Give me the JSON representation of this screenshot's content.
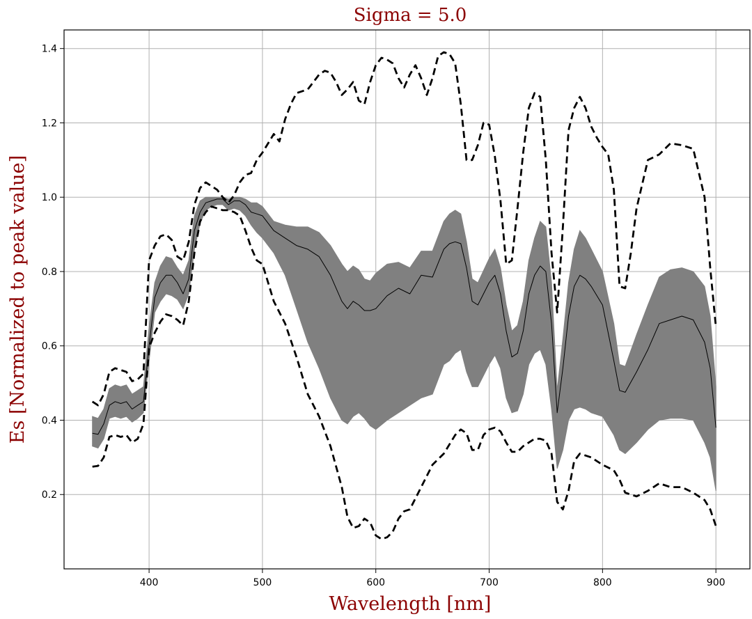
{
  "chart_data": {
    "type": "line",
    "title": "Sigma = 5.0",
    "xlabel": "Wavelength [nm]",
    "ylabel": "Es [Normalized to peak value]",
    "xlim": [
      325,
      930
    ],
    "ylim": [
      0.0,
      1.45
    ],
    "x_ticks": [
      400,
      500,
      600,
      700,
      800,
      900
    ],
    "y_ticks": [
      0.2,
      0.4,
      0.6,
      0.8,
      1.0,
      1.2,
      1.4
    ],
    "grid": true,
    "colors": {
      "band": "#808080",
      "mean": "#000000",
      "bounds": "#000000",
      "title": "#8b0000"
    },
    "series": [
      {
        "style": "solid-thin",
        "x": [
          350,
          355,
          360,
          365,
          370,
          375,
          380,
          385,
          390,
          395,
          400,
          405,
          410,
          415,
          420,
          425,
          430,
          435,
          440,
          445,
          450,
          455,
          460,
          465,
          470,
          475,
          480,
          485,
          490,
          495,
          500,
          510,
          520,
          530,
          540,
          550,
          560,
          570,
          575,
          580,
          585,
          590,
          595,
          600,
          610,
          620,
          630,
          640,
          650,
          660,
          665,
          670,
          675,
          680,
          685,
          690,
          700,
          705,
          710,
          715,
          720,
          725,
          730,
          735,
          740,
          745,
          750,
          755,
          760,
          765,
          770,
          775,
          780,
          785,
          790,
          800,
          810,
          815,
          820,
          830,
          840,
          850,
          860,
          870,
          880,
          890,
          895,
          900
        ],
        "y": [
          0.365,
          0.362,
          0.39,
          0.44,
          0.45,
          0.445,
          0.45,
          0.43,
          0.44,
          0.45,
          0.6,
          0.73,
          0.77,
          0.79,
          0.79,
          0.77,
          0.74,
          0.78,
          0.91,
          0.96,
          0.985,
          0.99,
          0.995,
          0.995,
          0.98,
          0.99,
          0.99,
          0.98,
          0.96,
          0.955,
          0.95,
          0.91,
          0.89,
          0.87,
          0.86,
          0.84,
          0.79,
          0.72,
          0.7,
          0.72,
          0.71,
          0.695,
          0.695,
          0.7,
          0.735,
          0.755,
          0.74,
          0.79,
          0.785,
          0.86,
          0.875,
          0.88,
          0.875,
          0.81,
          0.72,
          0.71,
          0.77,
          0.79,
          0.74,
          0.64,
          0.57,
          0.58,
          0.64,
          0.74,
          0.79,
          0.815,
          0.8,
          0.66,
          0.42,
          0.54,
          0.68,
          0.76,
          0.79,
          0.78,
          0.76,
          0.71,
          0.56,
          0.48,
          0.475,
          0.53,
          0.59,
          0.66,
          0.67,
          0.68,
          0.67,
          0.61,
          0.54,
          0.38
        ]
      },
      {
        "style": "dashed",
        "x": [
          350,
          355,
          360,
          365,
          370,
          375,
          380,
          385,
          390,
          395,
          400,
          405,
          410,
          415,
          420,
          425,
          430,
          435,
          440,
          445,
          450,
          455,
          460,
          465,
          470,
          475,
          480,
          485,
          490,
          495,
          500,
          510,
          515,
          520,
          525,
          530,
          540,
          545,
          550,
          555,
          560,
          565,
          570,
          575,
          580,
          585,
          590,
          595,
          600,
          605,
          610,
          615,
          620,
          625,
          630,
          635,
          640,
          645,
          650,
          655,
          660,
          665,
          670,
          675,
          680,
          685,
          690,
          695,
          700,
          705,
          710,
          715,
          720,
          725,
          730,
          735,
          740,
          745,
          750,
          755,
          760,
          765,
          770,
          775,
          780,
          785,
          790,
          795,
          800,
          805,
          810,
          815,
          820,
          825,
          830,
          840,
          850,
          860,
          870,
          880,
          890,
          895,
          900
        ],
        "y": [
          0.45,
          0.44,
          0.47,
          0.53,
          0.54,
          0.535,
          0.53,
          0.505,
          0.51,
          0.525,
          0.83,
          0.87,
          0.895,
          0.9,
          0.885,
          0.84,
          0.83,
          0.88,
          0.98,
          1.025,
          1.04,
          1.03,
          1.02,
          1.0,
          0.985,
          1.005,
          1.04,
          1.06,
          1.065,
          1.1,
          1.12,
          1.17,
          1.15,
          1.21,
          1.25,
          1.28,
          1.29,
          1.31,
          1.33,
          1.34,
          1.335,
          1.31,
          1.275,
          1.29,
          1.31,
          1.26,
          1.25,
          1.31,
          1.355,
          1.375,
          1.37,
          1.36,
          1.32,
          1.295,
          1.33,
          1.355,
          1.32,
          1.275,
          1.32,
          1.38,
          1.39,
          1.385,
          1.36,
          1.25,
          1.1,
          1.1,
          1.14,
          1.2,
          1.195,
          1.11,
          0.99,
          0.82,
          0.83,
          0.97,
          1.12,
          1.24,
          1.28,
          1.27,
          1.1,
          0.85,
          0.69,
          0.92,
          1.18,
          1.24,
          1.27,
          1.24,
          1.19,
          1.16,
          1.135,
          1.115,
          1.02,
          0.76,
          0.755,
          0.85,
          0.97,
          1.1,
          1.115,
          1.145,
          1.14,
          1.13,
          1.0,
          0.81,
          0.65
        ]
      },
      {
        "style": "dashed",
        "x": [
          350,
          355,
          360,
          365,
          370,
          375,
          380,
          385,
          390,
          395,
          400,
          405,
          410,
          415,
          420,
          425,
          430,
          435,
          440,
          445,
          450,
          455,
          460,
          465,
          470,
          475,
          480,
          485,
          490,
          495,
          500,
          505,
          510,
          520,
          530,
          540,
          550,
          560,
          570,
          575,
          580,
          585,
          590,
          595,
          600,
          605,
          610,
          615,
          620,
          625,
          630,
          640,
          650,
          660,
          670,
          675,
          680,
          685,
          690,
          695,
          700,
          705,
          710,
          715,
          720,
          725,
          730,
          740,
          745,
          750,
          755,
          760,
          765,
          770,
          775,
          780,
          790,
          800,
          810,
          815,
          820,
          830,
          840,
          850,
          860,
          870,
          880,
          890,
          895,
          900
        ],
        "y": [
          0.275,
          0.277,
          0.3,
          0.355,
          0.36,
          0.355,
          0.36,
          0.34,
          0.35,
          0.39,
          0.595,
          0.635,
          0.665,
          0.685,
          0.68,
          0.67,
          0.655,
          0.72,
          0.85,
          0.935,
          0.96,
          0.975,
          0.97,
          0.965,
          0.965,
          0.96,
          0.95,
          0.91,
          0.865,
          0.83,
          0.82,
          0.77,
          0.72,
          0.66,
          0.57,
          0.47,
          0.41,
          0.33,
          0.22,
          0.14,
          0.11,
          0.115,
          0.135,
          0.125,
          0.09,
          0.08,
          0.085,
          0.1,
          0.135,
          0.155,
          0.16,
          0.22,
          0.28,
          0.31,
          0.36,
          0.375,
          0.365,
          0.32,
          0.32,
          0.36,
          0.375,
          0.38,
          0.37,
          0.34,
          0.315,
          0.315,
          0.33,
          0.35,
          0.35,
          0.345,
          0.31,
          0.18,
          0.16,
          0.21,
          0.29,
          0.31,
          0.3,
          0.28,
          0.265,
          0.24,
          0.205,
          0.195,
          0.21,
          0.23,
          0.22,
          0.22,
          0.205,
          0.185,
          0.16,
          0.115
        ]
      }
    ],
    "envelope": {
      "x": [
        350,
        355,
        360,
        365,
        370,
        375,
        380,
        385,
        390,
        395,
        400,
        405,
        410,
        415,
        420,
        425,
        430,
        435,
        440,
        445,
        450,
        455,
        460,
        465,
        470,
        475,
        480,
        485,
        490,
        495,
        500,
        510,
        520,
        530,
        540,
        550,
        560,
        570,
        575,
        580,
        585,
        590,
        595,
        600,
        610,
        620,
        630,
        640,
        650,
        660,
        665,
        670,
        675,
        680,
        685,
        690,
        700,
        705,
        710,
        715,
        720,
        725,
        730,
        735,
        740,
        745,
        750,
        755,
        760,
        765,
        770,
        775,
        780,
        785,
        790,
        800,
        810,
        815,
        820,
        830,
        840,
        850,
        860,
        870,
        880,
        890,
        895,
        900
      ],
      "upper": [
        0.41,
        0.405,
        0.43,
        0.485,
        0.495,
        0.49,
        0.495,
        0.47,
        0.48,
        0.49,
        0.65,
        0.77,
        0.815,
        0.84,
        0.835,
        0.81,
        0.79,
        0.83,
        0.95,
        0.99,
        1.0,
        1.0,
        1.0,
        1.0,
        0.995,
        1.0,
        1.0,
        0.995,
        0.985,
        0.985,
        0.975,
        0.935,
        0.925,
        0.92,
        0.92,
        0.905,
        0.87,
        0.82,
        0.8,
        0.815,
        0.805,
        0.78,
        0.775,
        0.795,
        0.82,
        0.825,
        0.81,
        0.855,
        0.855,
        0.935,
        0.955,
        0.965,
        0.955,
        0.88,
        0.78,
        0.77,
        0.835,
        0.86,
        0.81,
        0.71,
        0.64,
        0.655,
        0.72,
        0.83,
        0.89,
        0.935,
        0.92,
        0.77,
        0.48,
        0.62,
        0.77,
        0.86,
        0.91,
        0.89,
        0.86,
        0.8,
        0.66,
        0.55,
        0.545,
        0.63,
        0.71,
        0.785,
        0.805,
        0.81,
        0.8,
        0.76,
        0.68,
        0.49
      ],
      "lower": [
        0.33,
        0.325,
        0.35,
        0.405,
        0.41,
        0.405,
        0.41,
        0.395,
        0.405,
        0.42,
        0.56,
        0.69,
        0.72,
        0.74,
        0.735,
        0.725,
        0.7,
        0.74,
        0.86,
        0.93,
        0.965,
        0.975,
        0.98,
        0.98,
        0.965,
        0.97,
        0.965,
        0.95,
        0.925,
        0.905,
        0.89,
        0.85,
        0.79,
        0.7,
        0.61,
        0.54,
        0.46,
        0.4,
        0.39,
        0.41,
        0.42,
        0.405,
        0.385,
        0.375,
        0.4,
        0.42,
        0.44,
        0.46,
        0.47,
        0.55,
        0.56,
        0.58,
        0.59,
        0.53,
        0.49,
        0.49,
        0.55,
        0.575,
        0.54,
        0.46,
        0.42,
        0.425,
        0.47,
        0.55,
        0.58,
        0.59,
        0.55,
        0.43,
        0.27,
        0.32,
        0.4,
        0.43,
        0.435,
        0.43,
        0.42,
        0.41,
        0.36,
        0.32,
        0.31,
        0.34,
        0.375,
        0.4,
        0.405,
        0.405,
        0.4,
        0.34,
        0.3,
        0.21
      ]
    }
  }
}
